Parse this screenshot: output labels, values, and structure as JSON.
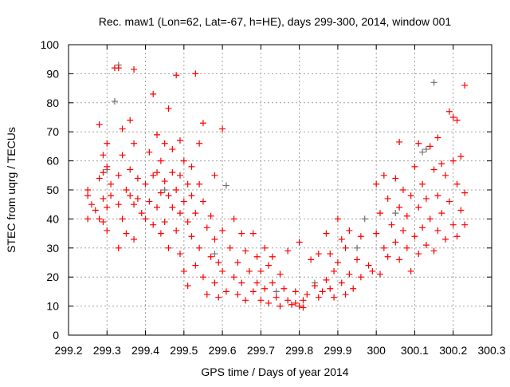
{
  "chart_data": {
    "type": "scatter",
    "title": "Rec. maw1 (Lon=62, Lat=-67, h=HE), days 299-300, 2014, window 001",
    "xlabel": "GPS time / Days of year 2014",
    "ylabel": "STEC from uqrg / TECUs",
    "xlim": [
      299.2,
      300.3
    ],
    "ylim": [
      0,
      100
    ],
    "grid": true,
    "xticks": [
      299.2,
      299.3,
      299.4,
      299.5,
      299.6,
      299.7,
      299.8,
      299.9,
      300,
      300.1,
      300.2,
      300.3
    ],
    "xtick_labels": [
      "299.2",
      "299.3",
      "299.4",
      "299.5",
      "299.6",
      "299.7",
      "299.8",
      "299.9",
      "300",
      "300.1",
      "300.2",
      "300.3"
    ],
    "yticks": [
      0,
      10,
      20,
      30,
      40,
      50,
      60,
      70,
      80,
      90,
      100
    ],
    "ytick_labels": [
      "0",
      "10",
      "20",
      "30",
      "40",
      "50",
      "60",
      "70",
      "80",
      "90",
      "100"
    ],
    "series": [
      {
        "name": "gray",
        "color": "#707070",
        "points": [
          [
            299.32,
            80.5
          ],
          [
            299.33,
            93
          ],
          [
            299.61,
            51.5
          ],
          [
            299.97,
            40
          ],
          [
            300.12,
            63
          ],
          [
            300.15,
            87
          ],
          [
            299.3,
            57
          ],
          [
            299.45,
            50
          ],
          [
            299.58,
            28
          ],
          [
            299.74,
            15
          ],
          [
            299.84,
            18
          ],
          [
            299.95,
            30
          ],
          [
            300.05,
            42
          ],
          [
            300.13,
            64
          ]
        ]
      },
      {
        "name": "red",
        "color": "#ff0000",
        "points": [
          [
            299.25,
            50
          ],
          [
            299.25,
            48
          ],
          [
            299.25,
            40
          ],
          [
            299.26,
            45
          ],
          [
            299.27,
            43
          ],
          [
            299.28,
            72.5
          ],
          [
            299.28,
            54
          ],
          [
            299.28,
            40
          ],
          [
            299.29,
            62
          ],
          [
            299.29,
            56
          ],
          [
            299.29,
            47
          ],
          [
            299.29,
            39
          ],
          [
            299.3,
            58
          ],
          [
            299.3,
            66
          ],
          [
            299.3,
            44
          ],
          [
            299.3,
            36
          ],
          [
            299.31,
            52
          ],
          [
            299.31,
            48
          ],
          [
            299.32,
            92
          ],
          [
            299.33,
            92
          ],
          [
            299.33,
            55
          ],
          [
            299.33,
            45
          ],
          [
            299.33,
            30
          ],
          [
            299.34,
            71
          ],
          [
            299.34,
            62
          ],
          [
            299.34,
            40
          ],
          [
            299.35,
            50
          ],
          [
            299.35,
            35
          ],
          [
            299.36,
            74
          ],
          [
            299.36,
            57
          ],
          [
            299.36,
            48
          ],
          [
            299.37,
            91.5
          ],
          [
            299.37,
            66
          ],
          [
            299.37,
            45
          ],
          [
            299.37,
            33
          ],
          [
            299.38,
            54
          ],
          [
            299.38,
            47
          ],
          [
            299.39,
            42
          ],
          [
            299.4,
            52
          ],
          [
            299.4,
            40
          ],
          [
            299.41,
            63
          ],
          [
            299.41,
            46
          ],
          [
            299.42,
            83
          ],
          [
            299.42,
            55
          ],
          [
            299.42,
            38
          ],
          [
            299.43,
            69
          ],
          [
            299.43,
            56
          ],
          [
            299.43,
            44
          ],
          [
            299.44,
            60
          ],
          [
            299.44,
            49
          ],
          [
            299.44,
            35
          ],
          [
            299.45,
            66
          ],
          [
            299.45,
            53
          ],
          [
            299.45,
            39
          ],
          [
            299.46,
            78
          ],
          [
            299.46,
            48
          ],
          [
            299.46,
            30
          ],
          [
            299.47,
            64
          ],
          [
            299.47,
            56
          ],
          [
            299.47,
            44
          ],
          [
            299.48,
            89.5
          ],
          [
            299.48,
            50
          ],
          [
            299.48,
            36
          ],
          [
            299.49,
            67
          ],
          [
            299.49,
            55
          ],
          [
            299.49,
            42
          ],
          [
            299.49,
            28
          ],
          [
            299.5,
            60
          ],
          [
            299.5,
            46
          ],
          [
            299.5,
            22
          ],
          [
            299.51,
            52
          ],
          [
            299.51,
            39
          ],
          [
            299.51,
            17
          ],
          [
            299.52,
            58
          ],
          [
            299.52,
            48
          ],
          [
            299.52,
            34
          ],
          [
            299.53,
            90
          ],
          [
            299.53,
            42
          ],
          [
            299.53,
            24
          ],
          [
            299.54,
            66
          ],
          [
            299.54,
            52
          ],
          [
            299.54,
            30
          ],
          [
            299.55,
            73
          ],
          [
            299.55,
            46
          ],
          [
            299.55,
            20
          ],
          [
            299.56,
            37
          ],
          [
            299.56,
            14
          ],
          [
            299.57,
            41
          ],
          [
            299.57,
            27
          ],
          [
            299.58,
            55
          ],
          [
            299.58,
            33
          ],
          [
            299.58,
            18
          ],
          [
            299.59,
            25
          ],
          [
            299.59,
            13
          ],
          [
            299.6,
            71
          ],
          [
            299.6,
            36
          ],
          [
            299.6,
            22
          ],
          [
            299.61,
            15
          ],
          [
            299.62,
            30
          ],
          [
            299.63,
            20
          ],
          [
            299.63,
            40
          ],
          [
            299.64,
            25
          ],
          [
            299.64,
            14
          ],
          [
            299.65,
            35
          ],
          [
            299.65,
            18
          ],
          [
            299.66,
            29
          ],
          [
            299.66,
            12
          ],
          [
            299.67,
            22
          ],
          [
            299.68,
            35
          ],
          [
            299.68,
            15
          ],
          [
            299.69,
            27
          ],
          [
            299.69,
            18
          ],
          [
            299.7,
            12
          ],
          [
            299.7,
            22
          ],
          [
            299.71,
            30
          ],
          [
            299.71,
            16
          ],
          [
            299.72,
            24
          ],
          [
            299.72,
            11
          ],
          [
            299.73,
            18
          ],
          [
            299.73,
            27
          ],
          [
            299.74,
            13
          ],
          [
            299.75,
            21
          ],
          [
            299.75,
            10
          ],
          [
            299.76,
            16
          ],
          [
            299.77,
            12
          ],
          [
            299.77,
            29
          ],
          [
            299.78,
            10.5
          ],
          [
            299.79,
            11
          ],
          [
            299.79,
            15
          ],
          [
            299.8,
            10
          ],
          [
            299.8,
            32
          ],
          [
            299.81,
            12
          ],
          [
            299.81,
            9.5
          ],
          [
            299.82,
            14
          ],
          [
            299.83,
            26
          ],
          [
            299.84,
            17
          ],
          [
            299.85,
            28
          ],
          [
            299.85,
            13
          ],
          [
            299.86,
            15
          ],
          [
            299.87,
            35
          ],
          [
            299.87,
            19
          ],
          [
            299.88,
            16
          ],
          [
            299.88,
            28
          ],
          [
            299.89,
            22
          ],
          [
            299.89,
            13
          ],
          [
            299.9,
            25
          ],
          [
            299.9,
            40
          ],
          [
            299.91,
            18
          ],
          [
            299.91,
            33
          ],
          [
            299.92,
            14
          ],
          [
            299.92,
            30
          ],
          [
            299.93,
            21
          ],
          [
            299.93,
            36
          ],
          [
            299.94,
            16
          ],
          [
            299.95,
            26
          ],
          [
            299.96,
            34
          ],
          [
            299.96,
            20
          ],
          [
            299.98,
            24
          ],
          [
            299.99,
            22
          ],
          [
            300.0,
            52
          ],
          [
            300.0,
            35
          ],
          [
            300.01,
            21
          ],
          [
            300.01,
            42
          ],
          [
            300.02,
            55
          ],
          [
            300.02,
            30
          ],
          [
            300.03,
            47
          ],
          [
            300.03,
            27
          ],
          [
            300.04,
            38
          ],
          [
            300.05,
            54
          ],
          [
            300.05,
            32
          ],
          [
            300.06,
            66.5
          ],
          [
            300.06,
            44
          ],
          [
            300.06,
            26
          ],
          [
            300.07,
            50
          ],
          [
            300.07,
            36
          ],
          [
            300.08,
            41
          ],
          [
            300.08,
            30
          ],
          [
            300.09,
            48
          ],
          [
            300.09,
            22
          ],
          [
            300.1,
            58
          ],
          [
            300.1,
            34
          ],
          [
            300.11,
            66
          ],
          [
            300.11,
            44
          ],
          [
            300.11,
            28
          ],
          [
            300.12,
            52
          ],
          [
            300.12,
            37
          ],
          [
            300.13,
            47
          ],
          [
            300.13,
            31
          ],
          [
            300.14,
            65
          ],
          [
            300.14,
            40
          ],
          [
            300.15,
            57
          ],
          [
            300.15,
            29
          ],
          [
            300.16,
            68
          ],
          [
            300.16,
            48
          ],
          [
            300.16,
            36
          ],
          [
            300.17,
            59
          ],
          [
            300.17,
            42
          ],
          [
            300.18,
            55
          ],
          [
            300.18,
            33
          ],
          [
            300.19,
            77
          ],
          [
            300.19,
            46
          ],
          [
            300.2,
            75
          ],
          [
            300.2,
            60
          ],
          [
            300.2,
            38
          ],
          [
            300.21,
            74
          ],
          [
            300.21,
            52
          ],
          [
            300.21,
            34
          ],
          [
            300.22,
            61.5
          ],
          [
            300.22,
            43
          ],
          [
            300.23,
            86
          ],
          [
            300.23,
            49
          ],
          [
            300.23,
            38
          ]
        ]
      }
    ]
  }
}
